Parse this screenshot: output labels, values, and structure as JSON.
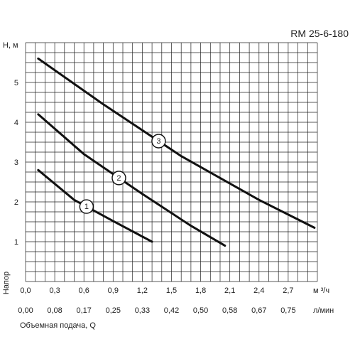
{
  "chart_data": {
    "type": "line",
    "title": "RM 25-6-180",
    "ylabel_top": "H, м",
    "ylabel_side": "Напор",
    "xlabel": "Объемная подача, Q",
    "x_unit_primary": "м ³/ч",
    "x_unit_secondary": "л/мин",
    "xlim": [
      0,
      3.0
    ],
    "ylim": [
      0,
      6.0
    ],
    "x_ticks": [
      "0,0",
      "0,3",
      "0,6",
      "0,9",
      "1,2",
      "1,5",
      "1,8",
      "2,1",
      "2,4",
      "2,7"
    ],
    "x_tick_values": [
      0,
      0.3,
      0.6,
      0.9,
      1.2,
      1.5,
      1.8,
      2.1,
      2.4,
      2.7
    ],
    "x_ticks_secondary": [
      "0,00",
      "0,08",
      "0,17",
      "0,25",
      "0,33",
      "0,42",
      "0,50",
      "0,58",
      "0,67",
      "0,75"
    ],
    "y_ticks": [
      "1",
      "2",
      "3",
      "4",
      "5"
    ],
    "y_tick_values": [
      1,
      2,
      3,
      4,
      5
    ],
    "grid": true,
    "series": [
      {
        "name": "1",
        "x": [
          0.13,
          0.5,
          0.9,
          1.3
        ],
        "y": [
          2.8,
          2.05,
          1.52,
          1.0
        ]
      },
      {
        "name": "2",
        "x": [
          0.13,
          0.6,
          1.2,
          1.7,
          2.05
        ],
        "y": [
          4.2,
          3.2,
          2.2,
          1.4,
          0.9
        ]
      },
      {
        "name": "3",
        "x": [
          0.13,
          0.8,
          1.6,
          2.4,
          2.97
        ],
        "y": [
          5.6,
          4.45,
          3.15,
          2.05,
          1.35
        ]
      }
    ]
  }
}
